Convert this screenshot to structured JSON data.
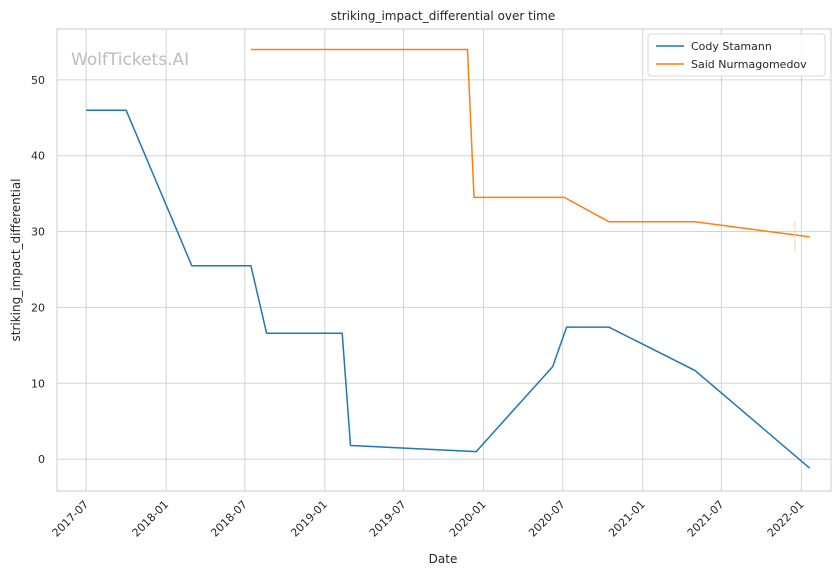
{
  "chart_data": {
    "type": "line",
    "title": "striking_impact_differential over time",
    "xlabel": "Date",
    "ylabel": "striking_impact_differential",
    "watermark": "WolfTickets.AI",
    "x_ticks": [
      "2017-07",
      "2018-01",
      "2018-07",
      "2019-01",
      "2019-07",
      "2020-01",
      "2020-07",
      "2021-01",
      "2021-07",
      "2022-01"
    ],
    "y_ticks": [
      0,
      10,
      20,
      30,
      40,
      50
    ],
    "xlim": [
      "2017-04-25",
      "2022-03-10"
    ],
    "ylim": [
      -4.2,
      56.7
    ],
    "grid": true,
    "legend_position": "top-right",
    "series": [
      {
        "name": "Cody Stamann",
        "color": "#1f77b4",
        "points": [
          {
            "x": "2017-07-01",
            "y": 46.0
          },
          {
            "x": "2017-10-01",
            "y": 46.0
          },
          {
            "x": "2018-03-01",
            "y": 25.5
          },
          {
            "x": "2018-07-15",
            "y": 25.5
          },
          {
            "x": "2018-08-20",
            "y": 16.6
          },
          {
            "x": "2019-02-10",
            "y": 16.6
          },
          {
            "x": "2019-03-01",
            "y": 1.8
          },
          {
            "x": "2019-12-15",
            "y": 1.0
          },
          {
            "x": "2020-06-08",
            "y": 12.2
          },
          {
            "x": "2020-07-10",
            "y": 17.4
          },
          {
            "x": "2020-10-15",
            "y": 17.4
          },
          {
            "x": "2021-05-01",
            "y": 11.7
          },
          {
            "x": "2022-01-20",
            "y": -1.2
          }
        ]
      },
      {
        "name": "Said Nurmagomedov",
        "color": "#ff7f0e",
        "points": [
          {
            "x": "2018-07-15",
            "y": 54.0
          },
          {
            "x": "2019-11-25",
            "y": 54.0
          },
          {
            "x": "2019-12-10",
            "y": 34.5
          },
          {
            "x": "2020-07-05",
            "y": 34.5
          },
          {
            "x": "2020-10-15",
            "y": 31.3
          },
          {
            "x": "2021-05-01",
            "y": 31.3
          },
          {
            "x": "2022-01-20",
            "y": 29.3
          }
        ]
      }
    ]
  }
}
